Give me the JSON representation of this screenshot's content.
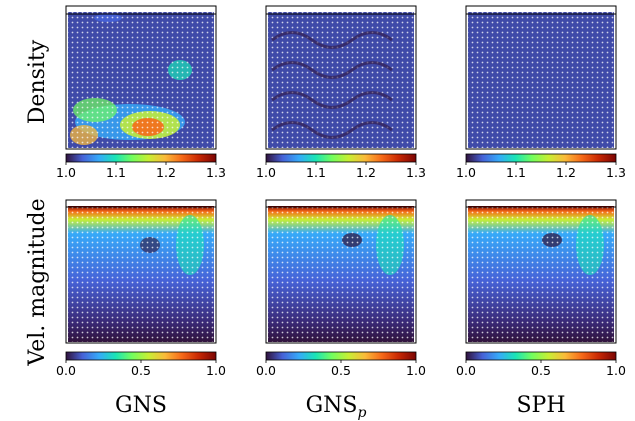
{
  "figure": {
    "row_labels": [
      "Density",
      "Vel. magnitude"
    ],
    "column_labels": [
      {
        "main": "GNS",
        "sub": ""
      },
      {
        "main": "GNS",
        "sub": "p"
      },
      {
        "main": "SPH",
        "sub": ""
      }
    ],
    "colorbars": [
      {
        "row": "Density",
        "ticks": [
          "1.0",
          "1.1",
          "1.2",
          "1.3"
        ],
        "range": [
          1.0,
          1.3
        ]
      },
      {
        "row": "Vel. magnitude",
        "ticks": [
          "0.0",
          "0.5",
          "1.0"
        ],
        "range": [
          0.0,
          1.0
        ]
      }
    ],
    "colormap_stops": [
      "#30123b",
      "#4662d7",
      "#36aaf9",
      "#1ae4b6",
      "#72fe5e",
      "#c7ef34",
      "#faba39",
      "#f66b19",
      "#ca2a04",
      "#7a0403"
    ]
  }
}
